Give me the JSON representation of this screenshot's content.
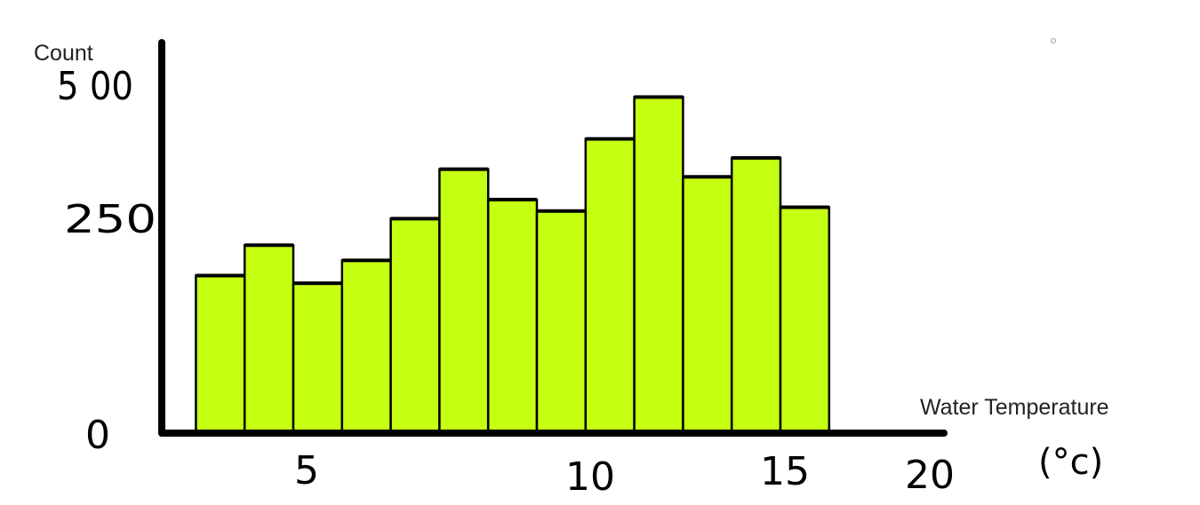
{
  "chart_data": {
    "type": "bar",
    "title": "",
    "ylabel": "Count",
    "xlabel": "Water Temperature",
    "xunit": "(°c)",
    "y_ticks": [
      "0",
      "250",
      "5 00"
    ],
    "y_tick_values": [
      0,
      250,
      500
    ],
    "x_ticks": [
      "5",
      "10",
      "15",
      "20"
    ],
    "x_tick_values": [
      5,
      10,
      15,
      20
    ],
    "ylim": [
      0,
      500
    ],
    "xlim": [
      0,
      20
    ],
    "bin_width": 1,
    "bins": [
      {
        "start": 3,
        "end": 4,
        "value": 205
      },
      {
        "start": 4,
        "end": 5,
        "value": 245
      },
      {
        "start": 5,
        "end": 6,
        "value": 195
      },
      {
        "start": 6,
        "end": 7,
        "value": 225
      },
      {
        "start": 7,
        "end": 8,
        "value": 280
      },
      {
        "start": 8,
        "end": 9,
        "value": 345
      },
      {
        "start": 9,
        "end": 10,
        "value": 305
      },
      {
        "start": 10,
        "end": 11,
        "value": 290
      },
      {
        "start": 11,
        "end": 12,
        "value": 385
      },
      {
        "start": 12,
        "end": 13,
        "value": 440
      },
      {
        "start": 13,
        "end": 14,
        "value": 335
      },
      {
        "start": 14,
        "end": 15,
        "value": 360
      },
      {
        "start": 15,
        "end": 16,
        "value": 295
      }
    ],
    "bar_color": "#c5ff12",
    "bar_edge_color": "#000000",
    "grid": false,
    "legend": "none"
  }
}
